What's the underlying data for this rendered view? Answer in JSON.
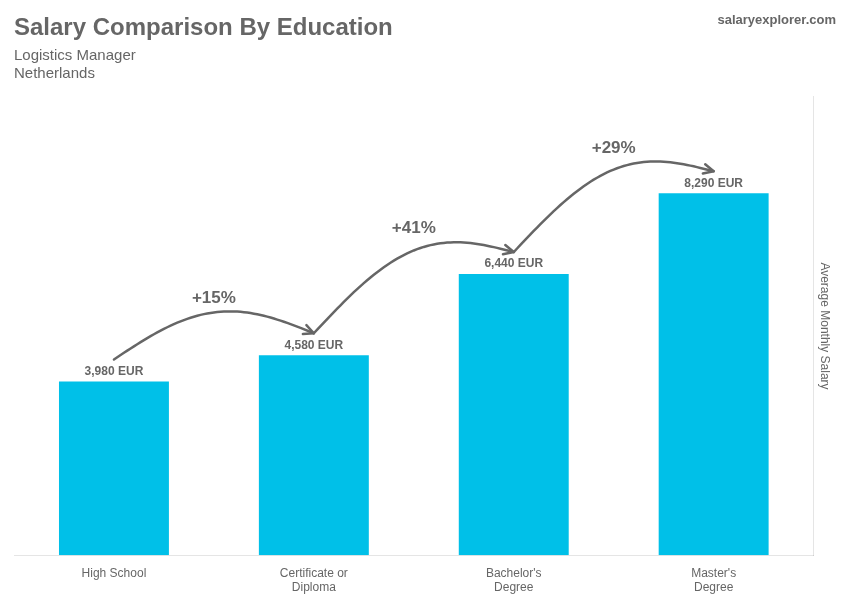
{
  "chart_data": {
    "type": "bar",
    "title": "Salary Comparison By Education",
    "subtitle": [
      "Logistics Manager",
      "Netherlands"
    ],
    "watermark": "salaryexplorer.com",
    "ylabel": "Average Monthly Salary",
    "categories": [
      "High School",
      "Certificate or\nDiploma",
      "Bachelor's\nDegree",
      "Master's\nDegree"
    ],
    "values": [
      3980,
      4580,
      6440,
      8290
    ],
    "value_labels": [
      "3,980 EUR",
      "4,580 EUR",
      "6,440 EUR",
      "8,290 EUR"
    ],
    "data_labels": true,
    "annotations": [
      {
        "text": "+15%",
        "from": "High School",
        "to": "Certificate or\nDiploma"
      },
      {
        "text": "+41%",
        "from": "Certificate or\nDiploma",
        "to": "Bachelor's\nDegree"
      },
      {
        "text": "+29%",
        "from": "Bachelor's\nDegree",
        "to": "Master's\nDegree"
      }
    ],
    "color": "#00c0e8",
    "ylim": [
      0,
      10500
    ],
    "grid": false,
    "tick_labels": "x"
  }
}
